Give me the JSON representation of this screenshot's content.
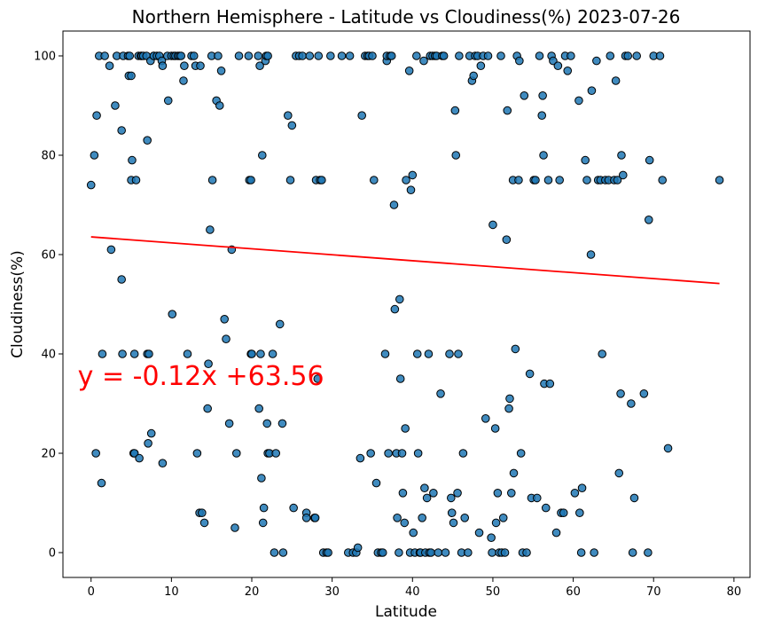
{
  "chart_data": {
    "type": "scatter",
    "title": "Northern Hemisphere - Latitude vs Cloudiness(%) 2023-07-26",
    "xlabel": "Latitude",
    "ylabel": "Cloudiness(%)",
    "xlim": [
      -3.5,
      82
    ],
    "ylim": [
      -5,
      105
    ],
    "xticks": [
      0,
      10,
      20,
      30,
      40,
      50,
      60,
      70,
      80
    ],
    "yticks": [
      0,
      20,
      40,
      60,
      80,
      100
    ],
    "grid": false,
    "colors": {
      "point_fill": "#1f77b4",
      "point_edge": "#000000",
      "regression_line": "#ff0000",
      "equation_text": "#ff0000"
    },
    "regression": {
      "slope": -0.12,
      "intercept": 63.56,
      "x_range": [
        0,
        78.2
      ],
      "equation_label": "y = -0.12x +63.56",
      "label_anchor": [
        -1,
        35
      ]
    },
    "points": [
      [
        0,
        74
      ],
      [
        0.4,
        80
      ],
      [
        0.6,
        20
      ],
      [
        0.7,
        88
      ],
      [
        1,
        100
      ],
      [
        1.3,
        14
      ],
      [
        1.4,
        40
      ],
      [
        1.7,
        100
      ],
      [
        2.3,
        98
      ],
      [
        2.5,
        61
      ],
      [
        3,
        90
      ],
      [
        3.2,
        100
      ],
      [
        3.8,
        85
      ],
      [
        3.8,
        55
      ],
      [
        3.9,
        40
      ],
      [
        4,
        100
      ],
      [
        4.6,
        100
      ],
      [
        4.7,
        96
      ],
      [
        4.8,
        100
      ],
      [
        5,
        96
      ],
      [
        5,
        75
      ],
      [
        5.1,
        79
      ],
      [
        5.3,
        20
      ],
      [
        5.4,
        20
      ],
      [
        5.4,
        40
      ],
      [
        5.6,
        75
      ],
      [
        5.9,
        100
      ],
      [
        6,
        19
      ],
      [
        6.2,
        100
      ],
      [
        6.3,
        100
      ],
      [
        6.5,
        100
      ],
      [
        6.9,
        100
      ],
      [
        7,
        83
      ],
      [
        7,
        40
      ],
      [
        7.1,
        22
      ],
      [
        7.2,
        40
      ],
      [
        7.4,
        99
      ],
      [
        7.5,
        24
      ],
      [
        7.8,
        100
      ],
      [
        7.8,
        100
      ],
      [
        8.2,
        100
      ],
      [
        8.5,
        100
      ],
      [
        8.8,
        99
      ],
      [
        8.9,
        98
      ],
      [
        8.9,
        18
      ],
      [
        9.5,
        100
      ],
      [
        9.6,
        91
      ],
      [
        10,
        100
      ],
      [
        10.1,
        48
      ],
      [
        10.3,
        100
      ],
      [
        10.5,
        100
      ],
      [
        10.8,
        100
      ],
      [
        11,
        100
      ],
      [
        11.2,
        100
      ],
      [
        11.5,
        95
      ],
      [
        11.6,
        98
      ],
      [
        12,
        40
      ],
      [
        12.5,
        100
      ],
      [
        12.8,
        100
      ],
      [
        13,
        98
      ],
      [
        13.2,
        20
      ],
      [
        13.5,
        8
      ],
      [
        13.6,
        98
      ],
      [
        13.8,
        8
      ],
      [
        14.1,
        6
      ],
      [
        14.5,
        29
      ],
      [
        14.6,
        38
      ],
      [
        14.8,
        65
      ],
      [
        15,
        100
      ],
      [
        15.1,
        75
      ],
      [
        15.6,
        91
      ],
      [
        15.8,
        100
      ],
      [
        16,
        90
      ],
      [
        16.2,
        97
      ],
      [
        16.6,
        47
      ],
      [
        16.8,
        43
      ],
      [
        17.2,
        26
      ],
      [
        17.5,
        61
      ],
      [
        17.9,
        5
      ],
      [
        18.1,
        20
      ],
      [
        18.4,
        100
      ],
      [
        19.6,
        100
      ],
      [
        19.7,
        75
      ],
      [
        19.9,
        75
      ],
      [
        19.9,
        40
      ],
      [
        20,
        40
      ],
      [
        20.8,
        100
      ],
      [
        20.9,
        29
      ],
      [
        21,
        98
      ],
      [
        21.1,
        40
      ],
      [
        21.2,
        15
      ],
      [
        21.3,
        80
      ],
      [
        21.4,
        6
      ],
      [
        21.5,
        9
      ],
      [
        21.7,
        99
      ],
      [
        21.8,
        100
      ],
      [
        21.9,
        26
      ],
      [
        22,
        100
      ],
      [
        22,
        20
      ],
      [
        22.2,
        20
      ],
      [
        22.6,
        40
      ],
      [
        22.8,
        0
      ],
      [
        23,
        20
      ],
      [
        23.5,
        46
      ],
      [
        23.8,
        26
      ],
      [
        23.9,
        0
      ],
      [
        24.5,
        88
      ],
      [
        24.8,
        75
      ],
      [
        25,
        86
      ],
      [
        25.2,
        9
      ],
      [
        25.5,
        100
      ],
      [
        25.9,
        100
      ],
      [
        26.3,
        100
      ],
      [
        26.8,
        8
      ],
      [
        26.8,
        7
      ],
      [
        27.2,
        100
      ],
      [
        27.8,
        7
      ],
      [
        27.9,
        7
      ],
      [
        28,
        75
      ],
      [
        28.2,
        35
      ],
      [
        28.3,
        100
      ],
      [
        28.5,
        75
      ],
      [
        28.7,
        75
      ],
      [
        28.9,
        0
      ],
      [
        29.3,
        0
      ],
      [
        29.5,
        0
      ],
      [
        29.8,
        100
      ],
      [
        31.2,
        100
      ],
      [
        32,
        0
      ],
      [
        32.2,
        100
      ],
      [
        32.6,
        0
      ],
      [
        33,
        0
      ],
      [
        33.2,
        1
      ],
      [
        33.5,
        19
      ],
      [
        33.7,
        88
      ],
      [
        34.1,
        100
      ],
      [
        34.4,
        100
      ],
      [
        34.6,
        100
      ],
      [
        34.8,
        20
      ],
      [
        35,
        100
      ],
      [
        35.2,
        75
      ],
      [
        35.5,
        14
      ],
      [
        35.7,
        0
      ],
      [
        36.1,
        0
      ],
      [
        36.3,
        0
      ],
      [
        36.6,
        40
      ],
      [
        36.8,
        99
      ],
      [
        36.8,
        100
      ],
      [
        37,
        20
      ],
      [
        37.2,
        100
      ],
      [
        37.4,
        100
      ],
      [
        37.7,
        70
      ],
      [
        37.8,
        49
      ],
      [
        38,
        20
      ],
      [
        38.1,
        7
      ],
      [
        38.3,
        0
      ],
      [
        38.4,
        51
      ],
      [
        38.5,
        35
      ],
      [
        38.7,
        20
      ],
      [
        38.8,
        12
      ],
      [
        39,
        6
      ],
      [
        39.1,
        25
      ],
      [
        39.2,
        75
      ],
      [
        39.6,
        97
      ],
      [
        39.7,
        0
      ],
      [
        39.8,
        73
      ],
      [
        40,
        76
      ],
      [
        40.1,
        4
      ],
      [
        40.3,
        0
      ],
      [
        40.5,
        100
      ],
      [
        40.6,
        40
      ],
      [
        40.7,
        20
      ],
      [
        40.9,
        0
      ],
      [
        41,
        0
      ],
      [
        41.2,
        7
      ],
      [
        41.4,
        99
      ],
      [
        41.5,
        13
      ],
      [
        41.6,
        0
      ],
      [
        41.8,
        11
      ],
      [
        42,
        40
      ],
      [
        42.1,
        0
      ],
      [
        42.2,
        100
      ],
      [
        42.3,
        0
      ],
      [
        42.5,
        100
      ],
      [
        42.6,
        12
      ],
      [
        42.8,
        100
      ],
      [
        43,
        100
      ],
      [
        43.2,
        0
      ],
      [
        43.5,
        32
      ],
      [
        43.7,
        100
      ],
      [
        43.9,
        100
      ],
      [
        44.1,
        0
      ],
      [
        44.6,
        40
      ],
      [
        44.8,
        11
      ],
      [
        44.9,
        8
      ],
      [
        45.1,
        6
      ],
      [
        45.3,
        89
      ],
      [
        45.4,
        80
      ],
      [
        45.6,
        12
      ],
      [
        45.7,
        40
      ],
      [
        45.8,
        100
      ],
      [
        46.1,
        0
      ],
      [
        46.3,
        20
      ],
      [
        46.5,
        7
      ],
      [
        46.9,
        0
      ],
      [
        47.1,
        100
      ],
      [
        47.4,
        95
      ],
      [
        47.6,
        96
      ],
      [
        47.8,
        100
      ],
      [
        48.1,
        100
      ],
      [
        48.3,
        4
      ],
      [
        48.5,
        98
      ],
      [
        48.8,
        100
      ],
      [
        49.1,
        27
      ],
      [
        49.4,
        100
      ],
      [
        49.8,
        3
      ],
      [
        49.9,
        0
      ],
      [
        50,
        66
      ],
      [
        50.3,
        25
      ],
      [
        50.4,
        6
      ],
      [
        50.6,
        12
      ],
      [
        50.8,
        0
      ],
      [
        51,
        100
      ],
      [
        51.1,
        0
      ],
      [
        51.3,
        7
      ],
      [
        51.5,
        0
      ],
      [
        51.7,
        63
      ],
      [
        51.8,
        89
      ],
      [
        52,
        29
      ],
      [
        52.1,
        31
      ],
      [
        52.3,
        12
      ],
      [
        52.5,
        75
      ],
      [
        52.6,
        16
      ],
      [
        52.8,
        41
      ],
      [
        53,
        100
      ],
      [
        53.2,
        75
      ],
      [
        53.3,
        99
      ],
      [
        53.5,
        20
      ],
      [
        53.7,
        0
      ],
      [
        53.9,
        92
      ],
      [
        54.2,
        0
      ],
      [
        54.6,
        36
      ],
      [
        54.8,
        11
      ],
      [
        55.1,
        75
      ],
      [
        55.3,
        75
      ],
      [
        55.5,
        11
      ],
      [
        55.8,
        100
      ],
      [
        56.1,
        88
      ],
      [
        56.2,
        92
      ],
      [
        56.3,
        80
      ],
      [
        56.4,
        34
      ],
      [
        56.6,
        9
      ],
      [
        56.9,
        75
      ],
      [
        57.1,
        34
      ],
      [
        57.3,
        100
      ],
      [
        57.5,
        99
      ],
      [
        57.9,
        4
      ],
      [
        58.1,
        98
      ],
      [
        58.3,
        75
      ],
      [
        58.5,
        8
      ],
      [
        58.8,
        8
      ],
      [
        59,
        100
      ],
      [
        59.3,
        97
      ],
      [
        59.7,
        100
      ],
      [
        60.2,
        12
      ],
      [
        60.7,
        91
      ],
      [
        60.8,
        8
      ],
      [
        61,
        0
      ],
      [
        61.1,
        13
      ],
      [
        61.5,
        79
      ],
      [
        61.7,
        75
      ],
      [
        62.2,
        60
      ],
      [
        62.3,
        93
      ],
      [
        62.6,
        0
      ],
      [
        62.9,
        99
      ],
      [
        63.1,
        75
      ],
      [
        63.4,
        75
      ],
      [
        63.6,
        40
      ],
      [
        64,
        75
      ],
      [
        64.4,
        75
      ],
      [
        64.6,
        100
      ],
      [
        65.1,
        75
      ],
      [
        65.3,
        95
      ],
      [
        65.5,
        75
      ],
      [
        65.7,
        16
      ],
      [
        65.9,
        32
      ],
      [
        66,
        80
      ],
      [
        66.2,
        76
      ],
      [
        66.5,
        100
      ],
      [
        66.8,
        100
      ],
      [
        67.2,
        30
      ],
      [
        67.4,
        0
      ],
      [
        67.6,
        11
      ],
      [
        67.9,
        100
      ],
      [
        68.8,
        32
      ],
      [
        69.3,
        0
      ],
      [
        69.4,
        67
      ],
      [
        69.5,
        79
      ],
      [
        70,
        100
      ],
      [
        70.8,
        100
      ],
      [
        71.1,
        75
      ],
      [
        71.8,
        21
      ],
      [
        78.2,
        75
      ]
    ]
  }
}
